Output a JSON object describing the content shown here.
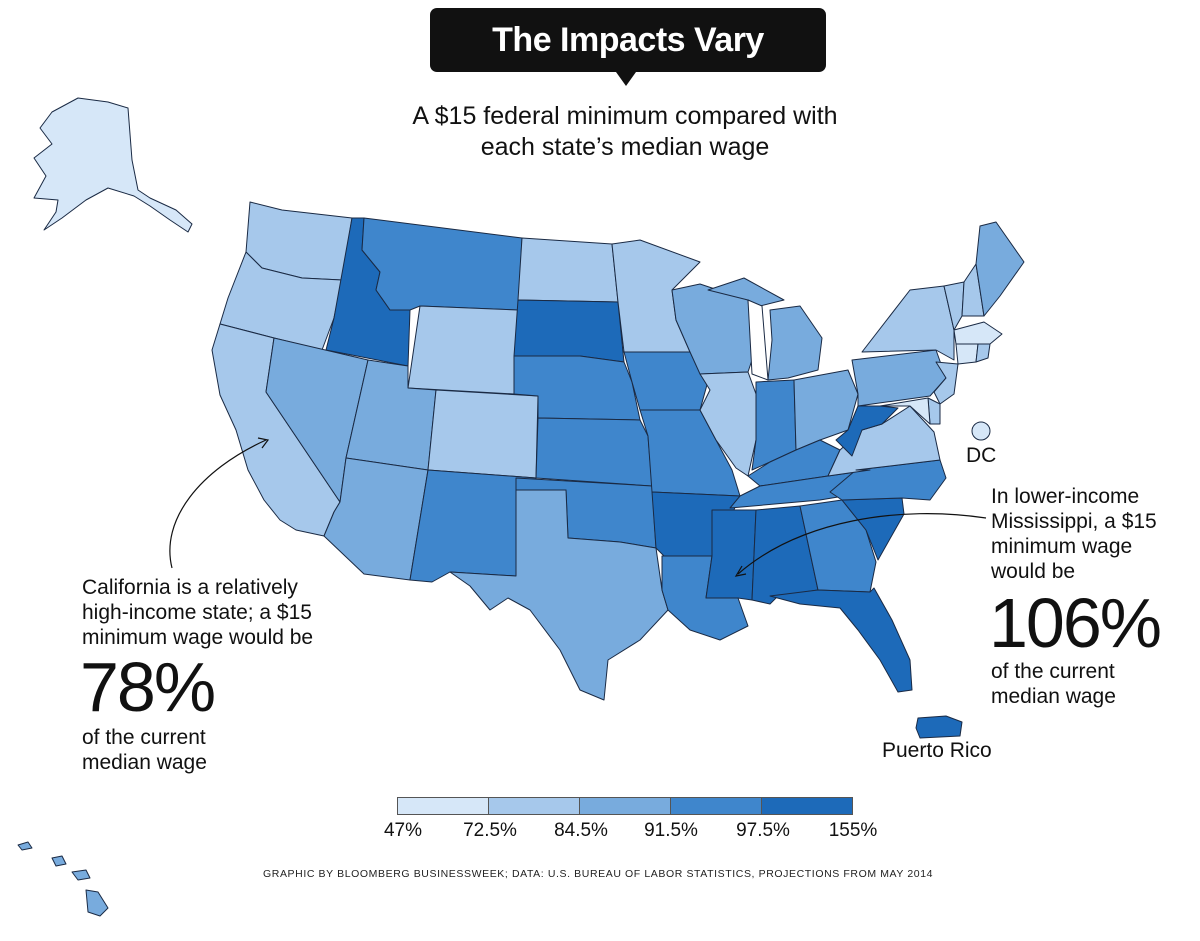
{
  "title": "The Impacts Vary",
  "subtitle_line1": "A $15 federal minimum compared with",
  "subtitle_line2": "each state’s median wage",
  "palette": {
    "c1": "#d6e7f8",
    "c2": "#a6c8eb",
    "c3": "#78abdd",
    "c4": "#3f86cc",
    "c5": "#1d6ab9"
  },
  "legend": {
    "ticks": [
      "47%",
      "72.5%",
      "84.5%",
      "91.5%",
      "97.5%",
      "155%"
    ]
  },
  "california_note": {
    "line1": "California is a relatively",
    "line2": "high-income state; a $15",
    "line3": "minimum wage would be",
    "value": "78%",
    "line4": "of the current",
    "line5": "median wage"
  },
  "mississippi_note": {
    "line1": "In lower-income",
    "line2": "Mississippi, a $15",
    "line3": "minimum wage",
    "line4": "would be",
    "value": "106%",
    "line5": "of the current",
    "line6": "median wage"
  },
  "dc_label": "DC",
  "puerto_rico_label": "Puerto Rico",
  "credit": "GRAPHIC BY BLOOMBERG BUSINESSWEEK; DATA: U.S. BUREAU OF LABOR STATISTICS, PROJECTIONS FROM MAY 2014",
  "bins": {
    "WA": "c2",
    "OR": "c2",
    "CA": "c2",
    "ID": "c5",
    "MT": "c4",
    "WY": "c2",
    "NV": "c3",
    "UT": "c3",
    "AZ": "c3",
    "CO": "c2",
    "NM": "c4",
    "ND": "c2",
    "SD": "c5",
    "NE": "c4",
    "KS": "c4",
    "OK": "c4",
    "TX": "c3",
    "MN": "c2",
    "IA": "c4",
    "MO": "c4",
    "AR": "c5",
    "LA": "c4",
    "WI": "c3",
    "IL": "c2",
    "MI": "c3",
    "IN": "c4",
    "OH": "c3",
    "KY": "c4",
    "TN": "c4",
    "MS": "c5",
    "AL": "c5",
    "GA": "c4",
    "FL": "c5",
    "SC": "c5",
    "NC": "c4",
    "VA": "c2",
    "WV": "c5",
    "PA": "c3",
    "NY": "c2",
    "ME": "c3",
    "VT": "c2",
    "NH": "c2",
    "MA": "c1",
    "CT": "c1",
    "RI": "c2",
    "NJ": "c2",
    "DE": "c2",
    "MD": "c1",
    "AK": "c1",
    "HI": "c3",
    "DC": "c1",
    "PR": "c5"
  }
}
